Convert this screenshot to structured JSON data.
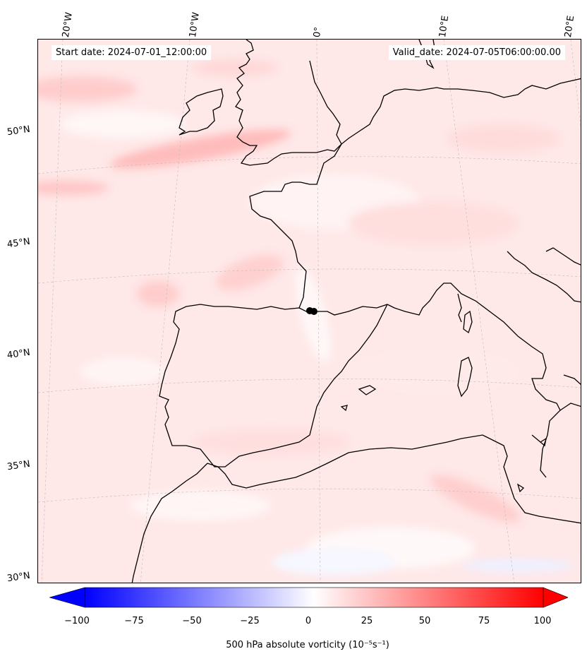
{
  "start_date_label": "Start date: 2024-07-01_12:00:00",
  "valid_date_label": "Valid_date: 2024-07-05T06:00:00.00",
  "lon_labels": [
    "20°W",
    "10°W",
    "0°",
    "10°E",
    "20°E"
  ],
  "lat_labels": [
    "50°N",
    "45°N",
    "40°N",
    "35°N",
    "30°N"
  ],
  "colorbar": {
    "ticks": [
      "−100",
      "−75",
      "−50",
      "−25",
      "0",
      "25",
      "50",
      "75",
      "100"
    ],
    "label": "500 hPa absolute vorticity (10⁻⁵s⁻¹)",
    "min": -100,
    "max": 100,
    "colors": {
      "negative": "#0000ff",
      "zero": "#ffffff",
      "positive": "#ff0000"
    }
  },
  "colors": {
    "field_base": "#ffe8e8",
    "field_light": "#fff5f5",
    "field_mid": "#ffd0d0",
    "field_strong": "#ffb8b8",
    "coastline": "#000000",
    "gridline": "#bbbbbb"
  }
}
